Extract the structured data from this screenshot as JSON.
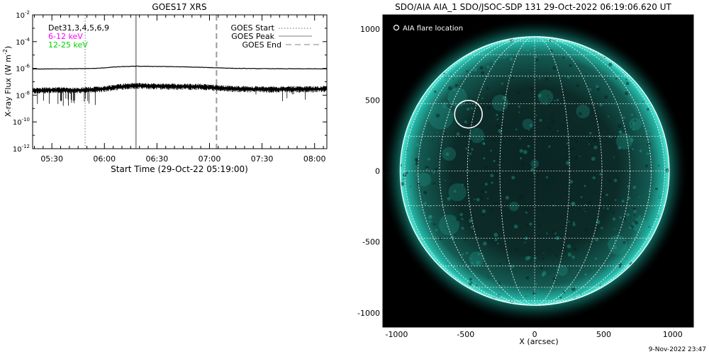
{
  "chart_data": [
    {
      "type": "line",
      "title": "GOES17 XRS",
      "xlabel": "Start Time (29-Oct-22 05:19:00)",
      "ylabel_main": "X-ray Flux (W m",
      "ylabel_sup": "-2",
      "ylabel_close": ")",
      "yscale": "log",
      "ylim": [
        1e-12,
        0.01
      ],
      "xlim": [
        "05:19",
        "08:07"
      ],
      "x_ticks": [
        "05:30",
        "06:00",
        "06:30",
        "07:00",
        "07:30",
        "08:00"
      ],
      "y_ticks": [
        {
          "value": 0.01,
          "base": "10",
          "exp": "-2"
        },
        {
          "value": 0.0001,
          "base": "10",
          "exp": "-4"
        },
        {
          "value": 1e-06,
          "base": "10",
          "exp": "-6"
        },
        {
          "value": 1e-08,
          "base": "10",
          "exp": "-8"
        },
        {
          "value": 1e-10,
          "base": "10",
          "exp": "-10"
        },
        {
          "value": 1e-12,
          "base": "10",
          "exp": "-12"
        }
      ],
      "annotations": {
        "detectors": "Det31,3,4,5,6,9",
        "band_low": "6-12 keV",
        "band_high": "12-25 keV",
        "band_low_color": "#ff00ff",
        "band_high_color": "#00d000"
      },
      "legend": {
        "placement": "top-right",
        "entries": [
          {
            "label": "GOES Start",
            "style": "dotted"
          },
          {
            "label": "GOES Peak",
            "style": "solid"
          },
          {
            "label": "GOES End",
            "style": "dashed"
          }
        ]
      },
      "event_lines": {
        "start": "05:49",
        "peak": "06:18",
        "end": "07:04"
      },
      "series": [
        {
          "band": "6-12 keV",
          "x": [
            "05:19",
            "05:30",
            "05:45",
            "05:55",
            "06:00",
            "06:05",
            "06:10",
            "06:15",
            "06:18",
            "06:25",
            "06:35",
            "06:45",
            "06:55",
            "07:05",
            "07:15",
            "07:30",
            "07:45",
            "08:00",
            "08:07"
          ],
          "y": [
            9e-07,
            9.2e-07,
            9.5e-07,
            1e-06,
            1.1e-06,
            1.25e-06,
            1.35e-06,
            1.42e-06,
            1.45e-06,
            1.42e-06,
            1.38e-06,
            1.3e-06,
            1.2e-06,
            1.1e-06,
            1e-06,
            9.6e-07,
            9.4e-07,
            9.3e-07,
            9.3e-07
          ]
        },
        {
          "band": "12-25 keV",
          "x": [
            "05:19",
            "05:30",
            "05:45",
            "05:55",
            "06:00",
            "06:05",
            "06:10",
            "06:15",
            "06:18",
            "06:25",
            "06:35",
            "06:45",
            "06:55",
            "07:05",
            "07:15",
            "07:30",
            "07:45",
            "08:00",
            "08:07"
          ],
          "y": [
            2.2e-08,
            2.4e-08,
            2.3e-08,
            2.7e-08,
            3e-08,
            3.8e-08,
            4.5e-08,
            5e-08,
            5.2e-08,
            4.8e-08,
            4.5e-08,
            4.5e-08,
            4.3e-08,
            3.5e-08,
            3e-08,
            2.8e-08,
            2.8e-08,
            2.9e-08,
            3e-08
          ]
        }
      ]
    },
    {
      "type": "image",
      "title": "SDO/AIA AIA_1 SDO/JSOC-SDP 131 29-Oct-2022 06:19:06.620 UT",
      "xlabel": "X (arcsec)",
      "xlim": [
        -1100,
        1150
      ],
      "ylim": [
        -1100,
        1100
      ],
      "x_ticks": [
        "-1000",
        "-500",
        "0",
        "500",
        "1000"
      ],
      "y_ticks": [
        "1000",
        "500",
        "0",
        "-500",
        "-1000"
      ],
      "legend_text": "AIA flare location",
      "flare_location": {
        "x": -480,
        "y": 400,
        "radius": 100
      },
      "solar_radius": 975,
      "disk_color": "#0e2a28",
      "limb_color": "#27d6c2",
      "grid": true,
      "footer": "9-Nov-2022 23:47"
    }
  ]
}
